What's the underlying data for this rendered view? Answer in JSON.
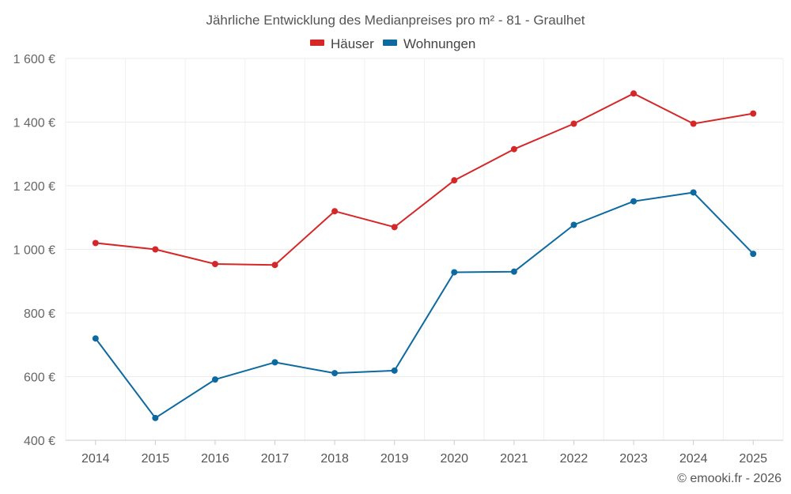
{
  "chart_data": {
    "type": "line",
    "title": "Jährliche Entwicklung des Medianpreises pro m² - 81 - Graulhet",
    "categories": [
      "2014",
      "2015",
      "2016",
      "2017",
      "2018",
      "2019",
      "2020",
      "2021",
      "2022",
      "2023",
      "2024",
      "2025"
    ],
    "series": [
      {
        "name": "Häuser",
        "color": "#d62728",
        "values": [
          1020,
          1000,
          954,
          951,
          1120,
          1070,
          1217,
          1315,
          1395,
          1490,
          1395,
          1427
        ]
      },
      {
        "name": "Wohnungen",
        "color": "#0d6aa1",
        "values": [
          720,
          470,
          591,
          645,
          611,
          619,
          928,
          930,
          1077,
          1151,
          1179,
          986
        ]
      }
    ],
    "ylim": [
      400,
      1600
    ],
    "yticks": [
      400,
      600,
      800,
      1000,
      1200,
      1400,
      1600
    ],
    "ytick_labels": [
      "400 €",
      "600 €",
      "800 €",
      "1 000 €",
      "1 200 €",
      "1 400 €",
      "1 600 €"
    ],
    "xlabel": "",
    "ylabel": "",
    "grid": true,
    "legend_position": "top-center"
  },
  "credit": "© emooki.fr - 2026"
}
